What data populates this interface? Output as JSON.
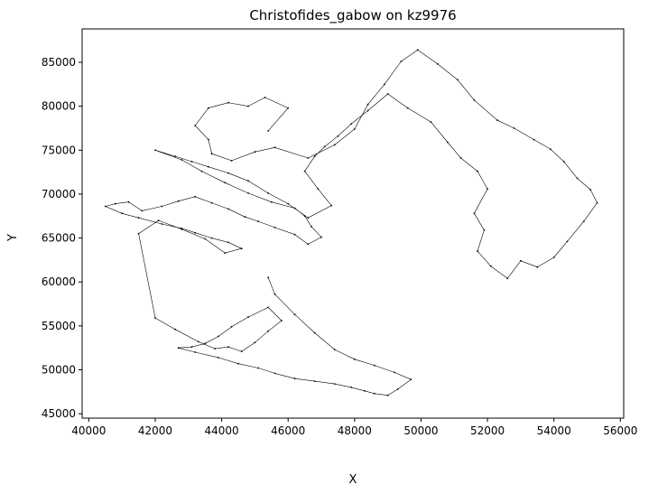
{
  "chart_data": {
    "type": "line",
    "title": "Christofides_gabow on kz9976",
    "xlabel": "X",
    "ylabel": "Y",
    "xlim": [
      39800,
      56100
    ],
    "ylim": [
      44500,
      88800
    ],
    "xticks": [
      40000,
      42000,
      44000,
      46000,
      48000,
      50000,
      52000,
      54000,
      56000
    ],
    "yticks": [
      45000,
      50000,
      55000,
      60000,
      65000,
      70000,
      75000,
      80000,
      85000
    ],
    "xtick_labels": [
      "40000",
      "42000",
      "44000",
      "46000",
      "48000",
      "50000",
      "52000",
      "54000",
      "56000"
    ],
    "ytick_labels": [
      "45000",
      "50000",
      "55000",
      "60000",
      "65000",
      "70000",
      "75000",
      "80000",
      "85000"
    ],
    "grid": false,
    "series": [
      {
        "color": "#000000",
        "x": [
          45400,
          46000,
          45300,
          44800,
          44200,
          43600,
          43200,
          43600,
          43700,
          44300,
          45000,
          45600,
          46600,
          47400,
          48000,
          48400,
          48900,
          49400,
          49900,
          50500,
          51100,
          51600,
          52300,
          52800,
          53400,
          53900,
          54300,
          54700,
          55100,
          55300,
          54900,
          54400,
          54000,
          53500,
          53000,
          52600,
          52100,
          51700,
          51900,
          51600,
          52000,
          51700,
          51200,
          50800,
          50300,
          49600,
          49000,
          48400,
          47900,
          47500,
          47100,
          46800,
          46500,
          46900,
          47300,
          46600,
          46000,
          45400,
          44800,
          44200,
          43600,
          43100,
          42600,
          42000,
          42800,
          43400,
          44100,
          44800,
          45500,
          46200,
          46500,
          46700,
          47000,
          46600,
          46200,
          45600,
          45100,
          44700,
          44200,
          43700,
          43200,
          42700,
          42200,
          41600,
          41200,
          40800,
          40500,
          41000,
          41500,
          42200,
          42800,
          43200,
          43700,
          44200,
          44600,
          44100,
          43500,
          42800,
          42100,
          41500,
          42000,
          42600,
          43300,
          43800,
          44200,
          44600,
          45000,
          45400,
          45800,
          45400,
          44800,
          44300,
          43900,
          43500,
          43100,
          42700,
          43200,
          43900,
          44500,
          45100,
          45600,
          46200,
          46800,
          47400,
          47900,
          48300,
          48600,
          49000,
          49300,
          49700,
          49200,
          48600,
          48000,
          47400,
          46800,
          46200,
          45600,
          45400
        ],
        "y": [
          77200,
          79800,
          81000,
          80000,
          80400,
          79800,
          77800,
          76200,
          74600,
          73800,
          74800,
          75300,
          74100,
          75600,
          77400,
          80200,
          82500,
          85100,
          86400,
          84800,
          83000,
          80700,
          78400,
          77500,
          76200,
          75100,
          73700,
          71800,
          70500,
          69000,
          66900,
          64600,
          62800,
          61700,
          62400,
          60400,
          61800,
          63500,
          65900,
          67800,
          70600,
          72600,
          74100,
          75900,
          78200,
          79800,
          81400,
          79500,
          78000,
          76600,
          75400,
          74300,
          72600,
          70600,
          68700,
          67300,
          68900,
          70100,
          71500,
          72400,
          73100,
          73700,
          74300,
          75000,
          73900,
          72600,
          71300,
          70100,
          69100,
          68400,
          67500,
          66300,
          65100,
          64300,
          65400,
          66200,
          66900,
          67400,
          68300,
          69000,
          69700,
          69200,
          68600,
          68100,
          69100,
          68900,
          68600,
          67800,
          67300,
          66600,
          66100,
          65600,
          65000,
          64500,
          63800,
          63300,
          64900,
          66000,
          67000,
          65500,
          55900,
          54600,
          53200,
          52400,
          52600,
          52100,
          53100,
          54400,
          55600,
          57100,
          56000,
          54900,
          53800,
          53000,
          52600,
          52500,
          52000,
          51400,
          50700,
          50200,
          49600,
          49000,
          48700,
          48400,
          48000,
          47600,
          47300,
          47100,
          47800,
          48900,
          49700,
          50500,
          51200,
          52300,
          54200,
          56300,
          58600,
          60500
        ]
      }
    ]
  }
}
